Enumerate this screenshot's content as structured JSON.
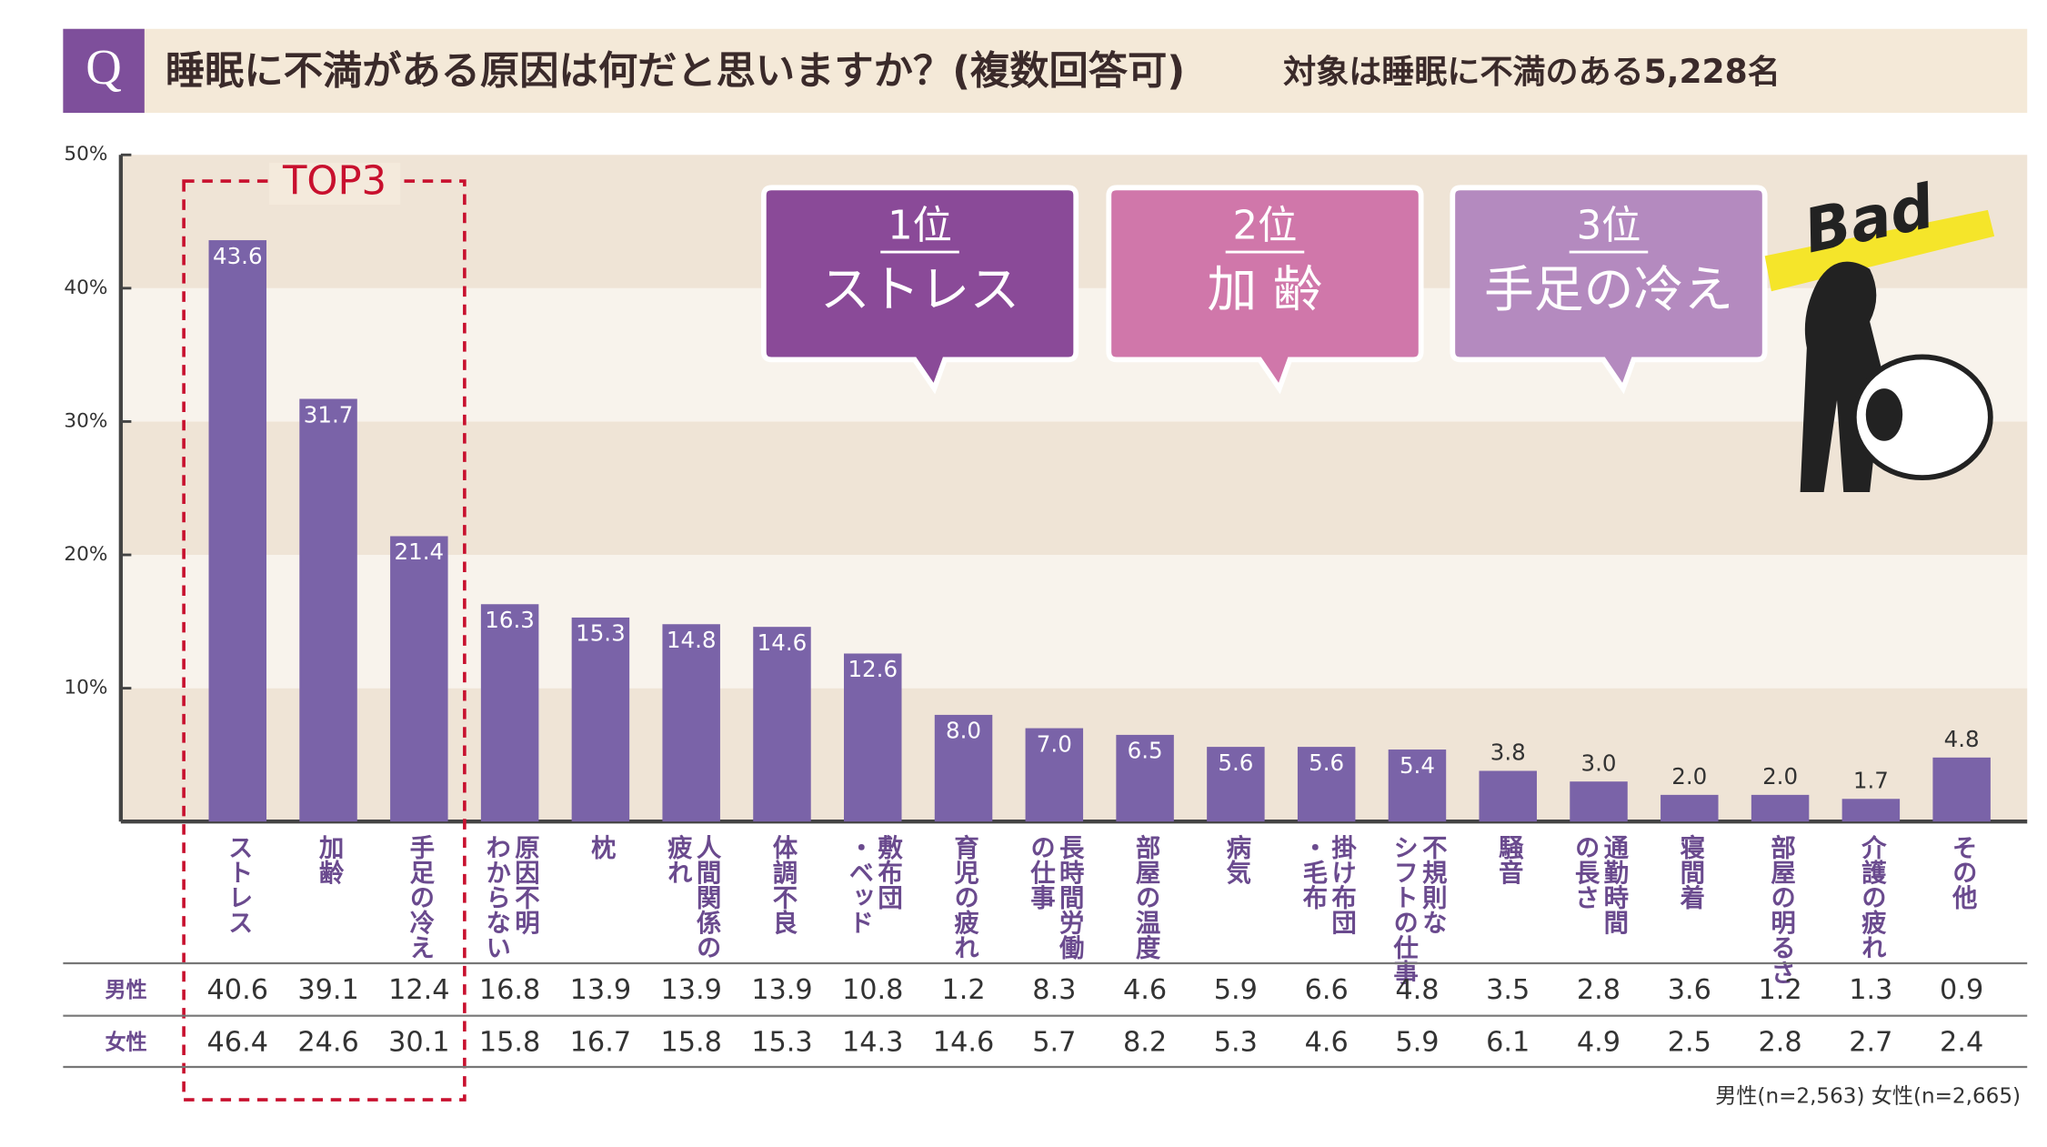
{
  "header": {
    "badge": "Q",
    "title": "睡眠に不満がある原因は何だと思いますか？(複数回答可)",
    "subtitle": "対象は睡眠に不満のある5,228名"
  },
  "chart_data": {
    "type": "bar",
    "color": "#7a63a8",
    "categories": [
      [
        "ストレス"
      ],
      [
        "加齢"
      ],
      [
        "手足の冷え"
      ],
      [
        "原因不明",
        "わからない"
      ],
      [
        "枕"
      ],
      [
        "人間関係の",
        "疲れ"
      ],
      [
        "体調不良"
      ],
      [
        "敷布団",
        "・ベッド"
      ],
      [
        "育児の疲れ"
      ],
      [
        "長時間労働",
        "の仕事"
      ],
      [
        "部屋の温度"
      ],
      [
        "病気"
      ],
      [
        "掛け布団",
        "・毛布"
      ],
      [
        "不規則な",
        "シフトの仕事"
      ],
      [
        "騒音"
      ],
      [
        "通勤時間",
        "の長さ"
      ],
      [
        "寝間着"
      ],
      [
        "部屋の明るさ"
      ],
      [
        "介護の疲れ"
      ],
      [
        "その他"
      ]
    ],
    "values": [
      43.6,
      31.7,
      21.4,
      16.3,
      15.3,
      14.8,
      14.6,
      12.6,
      8.0,
      7.0,
      6.5,
      5.6,
      5.6,
      5.4,
      3.8,
      3.0,
      2.0,
      2.0,
      1.7,
      4.8
    ],
    "value_labels": [
      "43.6",
      "31.7",
      "21.4",
      "16.3",
      "15.3",
      "14.8",
      "14.6",
      "12.6",
      "8.0",
      "7.0",
      "6.5",
      "5.6",
      "5.6",
      "5.4",
      "3.8",
      "3.0",
      "2.0",
      "2.0",
      "1.7",
      "4.8"
    ],
    "ylim": [
      0,
      50
    ],
    "yticks": [
      {
        "value": 10,
        "label": "10%"
      },
      {
        "value": 20,
        "label": "20%"
      },
      {
        "value": 30,
        "label": "30%"
      },
      {
        "value": 40,
        "label": "40%"
      },
      {
        "value": 50,
        "label": "50%"
      }
    ],
    "highlight_label": "TOP3"
  },
  "callouts": [
    {
      "rank": "1位",
      "label": "ストレス",
      "color": "#8a4a98"
    },
    {
      "rank": "2位",
      "label": "加 齢",
      "color": "#d077aa"
    },
    {
      "rank": "3位",
      "label": "手足の冷え",
      "color": "#b48abf"
    }
  ],
  "illustration": {
    "text": "Bad"
  },
  "table": {
    "rows": [
      {
        "label": "男性",
        "values": [
          "40.6",
          "39.1",
          "12.4",
          "16.8",
          "13.9",
          "13.9",
          "13.9",
          "10.8",
          "1.2",
          "8.3",
          "4.6",
          "5.9",
          "6.6",
          "4.8",
          "3.5",
          "2.8",
          "3.6",
          "1.2",
          "1.3",
          "0.9"
        ]
      },
      {
        "label": "女性",
        "values": [
          "46.4",
          "24.6",
          "30.1",
          "15.8",
          "16.7",
          "15.8",
          "15.3",
          "14.3",
          "14.6",
          "5.7",
          "8.2",
          "5.3",
          "4.6",
          "5.9",
          "6.1",
          "4.9",
          "2.5",
          "2.8",
          "2.7",
          "2.4"
        ]
      }
    ]
  },
  "footnote": "男性(n=2,563) 女性(n=2,665)"
}
